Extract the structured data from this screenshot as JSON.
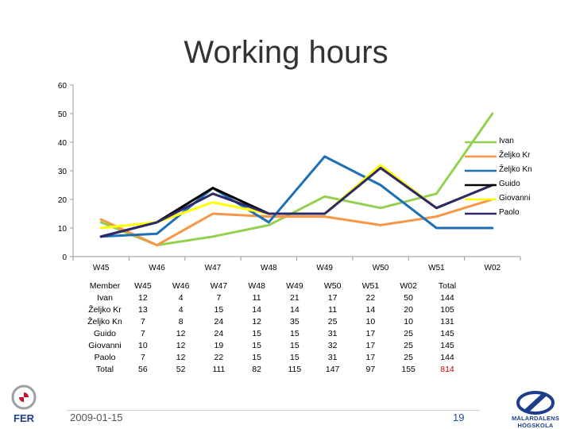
{
  "chart_data": {
    "type": "line",
    "title": "Working hours",
    "categories": [
      "W45",
      "W46",
      "W47",
      "W48",
      "W49",
      "W50",
      "W51",
      "W02"
    ],
    "ylim": [
      0,
      60
    ],
    "yticks": [
      0,
      10,
      20,
      30,
      40,
      50,
      60
    ],
    "grid": false,
    "legend": "right",
    "series": [
      {
        "name": "Ivan",
        "color": "#92d050",
        "values": [
          12,
          4,
          7,
          11,
          21,
          17,
          22,
          50
        ]
      },
      {
        "name": "Željko Kr",
        "color": "#f79646",
        "values": [
          13,
          4,
          15,
          14,
          14,
          11,
          14,
          20
        ]
      },
      {
        "name": "Željko Kn",
        "color": "#1f6fb5",
        "values": [
          7,
          8,
          24,
          12,
          35,
          25,
          10,
          10
        ]
      },
      {
        "name": "Guido",
        "color": "#000000",
        "values": [
          7,
          12,
          24,
          15,
          15,
          31,
          17,
          25
        ]
      },
      {
        "name": "Giovanni",
        "color": "#ffff00",
        "values": [
          10,
          12,
          19,
          15,
          15,
          32,
          17,
          25
        ]
      },
      {
        "name": "Paolo",
        "color": "#2e2a6a",
        "values": [
          7,
          12,
          22,
          15,
          15,
          31,
          17,
          25
        ]
      }
    ]
  },
  "table": {
    "header": [
      "Member",
      "W45",
      "W46",
      "W47",
      "W48",
      "W49",
      "W50",
      "W51",
      "W02",
      "Total"
    ],
    "rows": [
      [
        "Ivan",
        "12",
        "4",
        "7",
        "11",
        "21",
        "17",
        "22",
        "50",
        "144"
      ],
      [
        "Željko Kr",
        "13",
        "4",
        "15",
        "14",
        "14",
        "11",
        "14",
        "20",
        "105"
      ],
      [
        "Željko Kn",
        "7",
        "8",
        "24",
        "12",
        "35",
        "25",
        "10",
        "10",
        "131"
      ],
      [
        "Guido",
        "7",
        "12",
        "24",
        "15",
        "15",
        "31",
        "17",
        "25",
        "145"
      ],
      [
        "Giovanni",
        "10",
        "12",
        "19",
        "15",
        "15",
        "32",
        "17",
        "25",
        "145"
      ],
      [
        "Paolo",
        "7",
        "12",
        "22",
        "15",
        "15",
        "31",
        "17",
        "25",
        "144"
      ],
      [
        "Total",
        "56",
        "52",
        "111",
        "82",
        "115",
        "147",
        "97",
        "155",
        "814"
      ]
    ],
    "highlight_color": "#cc0000"
  },
  "footer": {
    "date": "2009-01-15",
    "page": "19",
    "logo_left_text": "FER",
    "logo_right_text": "MÄLARDALENS HÖGSKOLA"
  }
}
